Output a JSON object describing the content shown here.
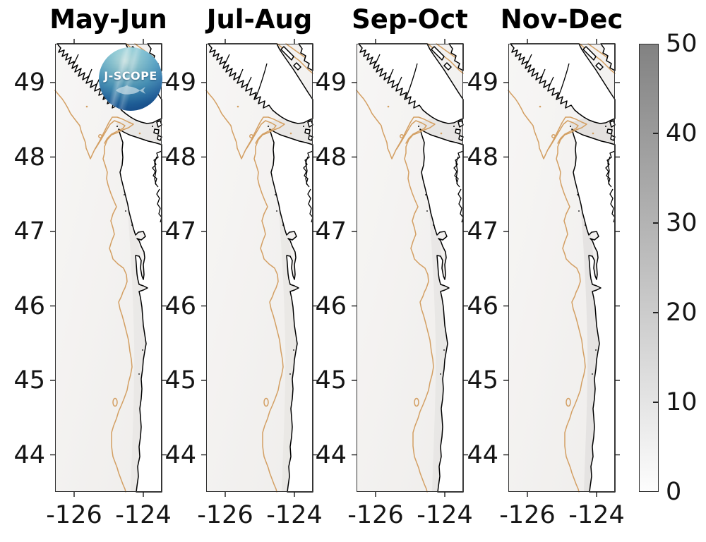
{
  "figure": {
    "description": "Four-panel seasonal coastal map figure with shared grayscale colorbar",
    "background": "#ffffff"
  },
  "panels": [
    {
      "title": "May-Jun",
      "lat_tick_labels": [
        "49",
        "48",
        "47",
        "46",
        "45",
        "44"
      ],
      "lon_tick_labels": [
        "-126",
        "-124"
      ],
      "has_logo": true,
      "shading_opacity": 0.5
    },
    {
      "title": "Jul-Aug",
      "lat_tick_labels": [
        "49",
        "48",
        "47",
        "46",
        "45",
        "44"
      ],
      "lon_tick_labels": [
        "-126",
        "-124"
      ],
      "has_logo": false,
      "shading_opacity": 0.55
    },
    {
      "title": "Sep-Oct",
      "lat_tick_labels": [
        "49",
        "48",
        "47",
        "46",
        "45",
        "44"
      ],
      "lon_tick_labels": [
        "-126",
        "-124"
      ],
      "has_logo": false,
      "shading_opacity": 0.6
    },
    {
      "title": "Nov-Dec",
      "lat_tick_labels": [
        "49",
        "48",
        "47",
        "46",
        "45",
        "44"
      ],
      "lon_tick_labels": [
        "-126",
        "-124"
      ],
      "has_logo": false,
      "shading_opacity": 0.85
    }
  ],
  "logo": {
    "text": "J-SCOPE"
  },
  "colorbar": {
    "tick_labels": [
      "50",
      "40",
      "30",
      "20",
      "10",
      "0"
    ],
    "min": 0,
    "max": 50,
    "gradient_top": "#828282",
    "gradient_bottom": "#fdfdfd"
  },
  "colors": {
    "coastline": "#000000",
    "isobath_contour": "#d39f63",
    "ocean_tint": "#f4f3f1",
    "tick": "#1a1a1a",
    "text": "#151515"
  },
  "chart_data": {
    "type": "heatmap",
    "subtype": "four geographic map panels (filled scalar field over ocean) sharing one vertical grayscale colorbar",
    "categories": [
      "May-Jun",
      "Jul-Aug",
      "Sep-Oct",
      "Nov-Dec"
    ],
    "x_axis": {
      "tick_labels": [
        -126,
        -124
      ],
      "range_approx": [
        -126.55,
        -123.5
      ],
      "meaning": "longitude, degrees"
    },
    "y_axis": {
      "tick_labels": [
        49,
        48,
        47,
        46,
        45,
        44
      ],
      "range_approx": [
        43.5,
        49.5
      ],
      "meaning": "latitude, degrees"
    },
    "colorbar": {
      "range": [
        0,
        50
      ],
      "tick_labels": [
        50,
        40,
        30,
        20,
        10,
        0
      ],
      "colormap": "white (0) to dark gray (50)"
    },
    "field_summary": "Plotted values are near the low end (~0-5 of 50) in every panel: ocean is almost white with faint gray shading, slightly stronger nearshore and inside the Strait of Juan de Fuca, strongest in Nov-Dec",
    "map_features": [
      "Vancouver Island with fjord inlets (top left of each panel)",
      "Strait of Juan de Fuca opening at ~48.2-48.4 N",
      "Washington-Oregon outer coast with Grays Harbor, Willapa Bay and Columbia River mouth",
      "tan offshore shelf contour with hooked loop at Juan de Fuca Canyon and V-shaped dip",
      "small closed tan contour loop near 44.7 N",
      "tan contour band in Strait of Georgia (top right corner)",
      "J-SCOPE circular logo overlaid on first panel"
    ],
    "grid": false,
    "legend": "none (colorbar only)"
  }
}
